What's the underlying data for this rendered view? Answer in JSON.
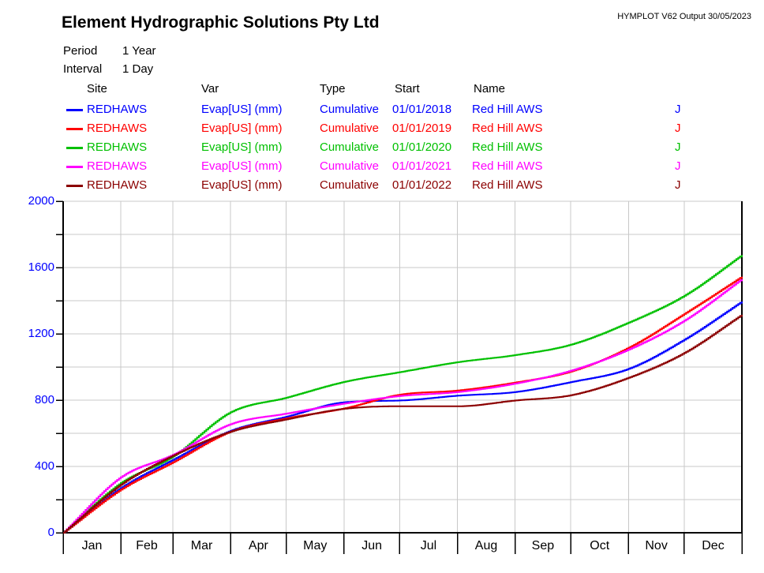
{
  "header": {
    "title": "Element Hydrographic Solutions Pty Ltd",
    "version_stamp": "HYMPLOT V62  Output 30/05/2023"
  },
  "meta": {
    "period_label": "Period",
    "period_value": "1 Year",
    "interval_label": "Interval",
    "interval_value": "1 Day"
  },
  "legend": {
    "columns": [
      "Site",
      "Var",
      "Type",
      "Start",
      "Name"
    ],
    "rows": [
      {
        "site": "REDHAWS",
        "var": "Evap[US] (mm)",
        "type": "Cumulative",
        "start": "01/01/2018",
        "name": "Red Hill AWS",
        "quality": "J",
        "color": "#0000ff"
      },
      {
        "site": "REDHAWS",
        "var": "Evap[US] (mm)",
        "type": "Cumulative",
        "start": "01/01/2019",
        "name": "Red Hill AWS",
        "quality": "J",
        "color": "#ff0000"
      },
      {
        "site": "REDHAWS",
        "var": "Evap[US] (mm)",
        "type": "Cumulative",
        "start": "01/01/2020",
        "name": "Red Hill AWS",
        "quality": "J",
        "color": "#00c000"
      },
      {
        "site": "REDHAWS",
        "var": "Evap[US] (mm)",
        "type": "Cumulative",
        "start": "01/01/2021",
        "name": "Red Hill AWS",
        "quality": "J",
        "color": "#ff00ff"
      },
      {
        "site": "REDHAWS",
        "var": "Evap[US] (mm)",
        "type": "Cumulative",
        "start": "01/01/2022",
        "name": "Red Hill AWS",
        "quality": "J",
        "color": "#8b0000"
      }
    ]
  },
  "chart_data": {
    "type": "line",
    "title": "",
    "xlabel": "",
    "ylabel": "",
    "x_tick_labels": [
      "Jan",
      "Feb",
      "Mar",
      "Apr",
      "May",
      "Jun",
      "Jul",
      "Aug",
      "Sep",
      "Oct",
      "Nov",
      "Dec"
    ],
    "y_tick_labels": [
      "0",
      "400",
      "800",
      "1200",
      "1600",
      "2000"
    ],
    "ylim": [
      0,
      2000
    ],
    "y_label_interval": 400,
    "y_grid_interval": 200,
    "grid": true,
    "grid_color": "#c8c8c8",
    "axis_color": "#000000",
    "y_label_color": "#0000ff",
    "anchor_labels": [
      "Jan 1",
      "Feb 1",
      "Mar 1",
      "Apr 1",
      "May 1",
      "Jun 1",
      "Jul 1",
      "Aug 1",
      "Sep 1",
      "Oct 1",
      "Nov 1",
      "Dec 1",
      "Dec 31"
    ],
    "anchor_days": [
      0,
      31,
      59,
      90,
      120,
      151,
      181,
      212,
      243,
      273,
      304,
      334,
      365
    ],
    "units": "mm (cumulative Evap[US])",
    "series": [
      {
        "name": "Red Hill AWS 2018",
        "start": "01/01/2018",
        "color": "#0000ff",
        "values": [
          0,
          270,
          440,
          615,
          700,
          787,
          798,
          827,
          849,
          909,
          989,
          1165,
          1395
        ]
      },
      {
        "name": "Red Hill AWS 2019",
        "start": "01/01/2019",
        "color": "#ff0000",
        "values": [
          0,
          260,
          425,
          610,
          690,
          750,
          833,
          858,
          906,
          973,
          1116,
          1320,
          1545
        ]
      },
      {
        "name": "Red Hill AWS 2020",
        "start": "01/01/2020",
        "color": "#00c000",
        "values": [
          0,
          300,
          460,
          727,
          815,
          910,
          969,
          1029,
          1072,
          1135,
          1268,
          1430,
          1675
        ]
      },
      {
        "name": "Red Hill AWS 2021",
        "start": "01/01/2021",
        "color": "#ff00ff",
        "values": [
          0,
          335,
          470,
          655,
          719,
          779,
          825,
          849,
          900,
          978,
          1105,
          1280,
          1530
        ]
      },
      {
        "name": "Red Hill AWS 2022",
        "start": "01/01/2022",
        "color": "#8b0000",
        "values": [
          0,
          290,
          465,
          610,
          684,
          748,
          763,
          763,
          798,
          830,
          935,
          1085,
          1315
        ]
      }
    ]
  }
}
